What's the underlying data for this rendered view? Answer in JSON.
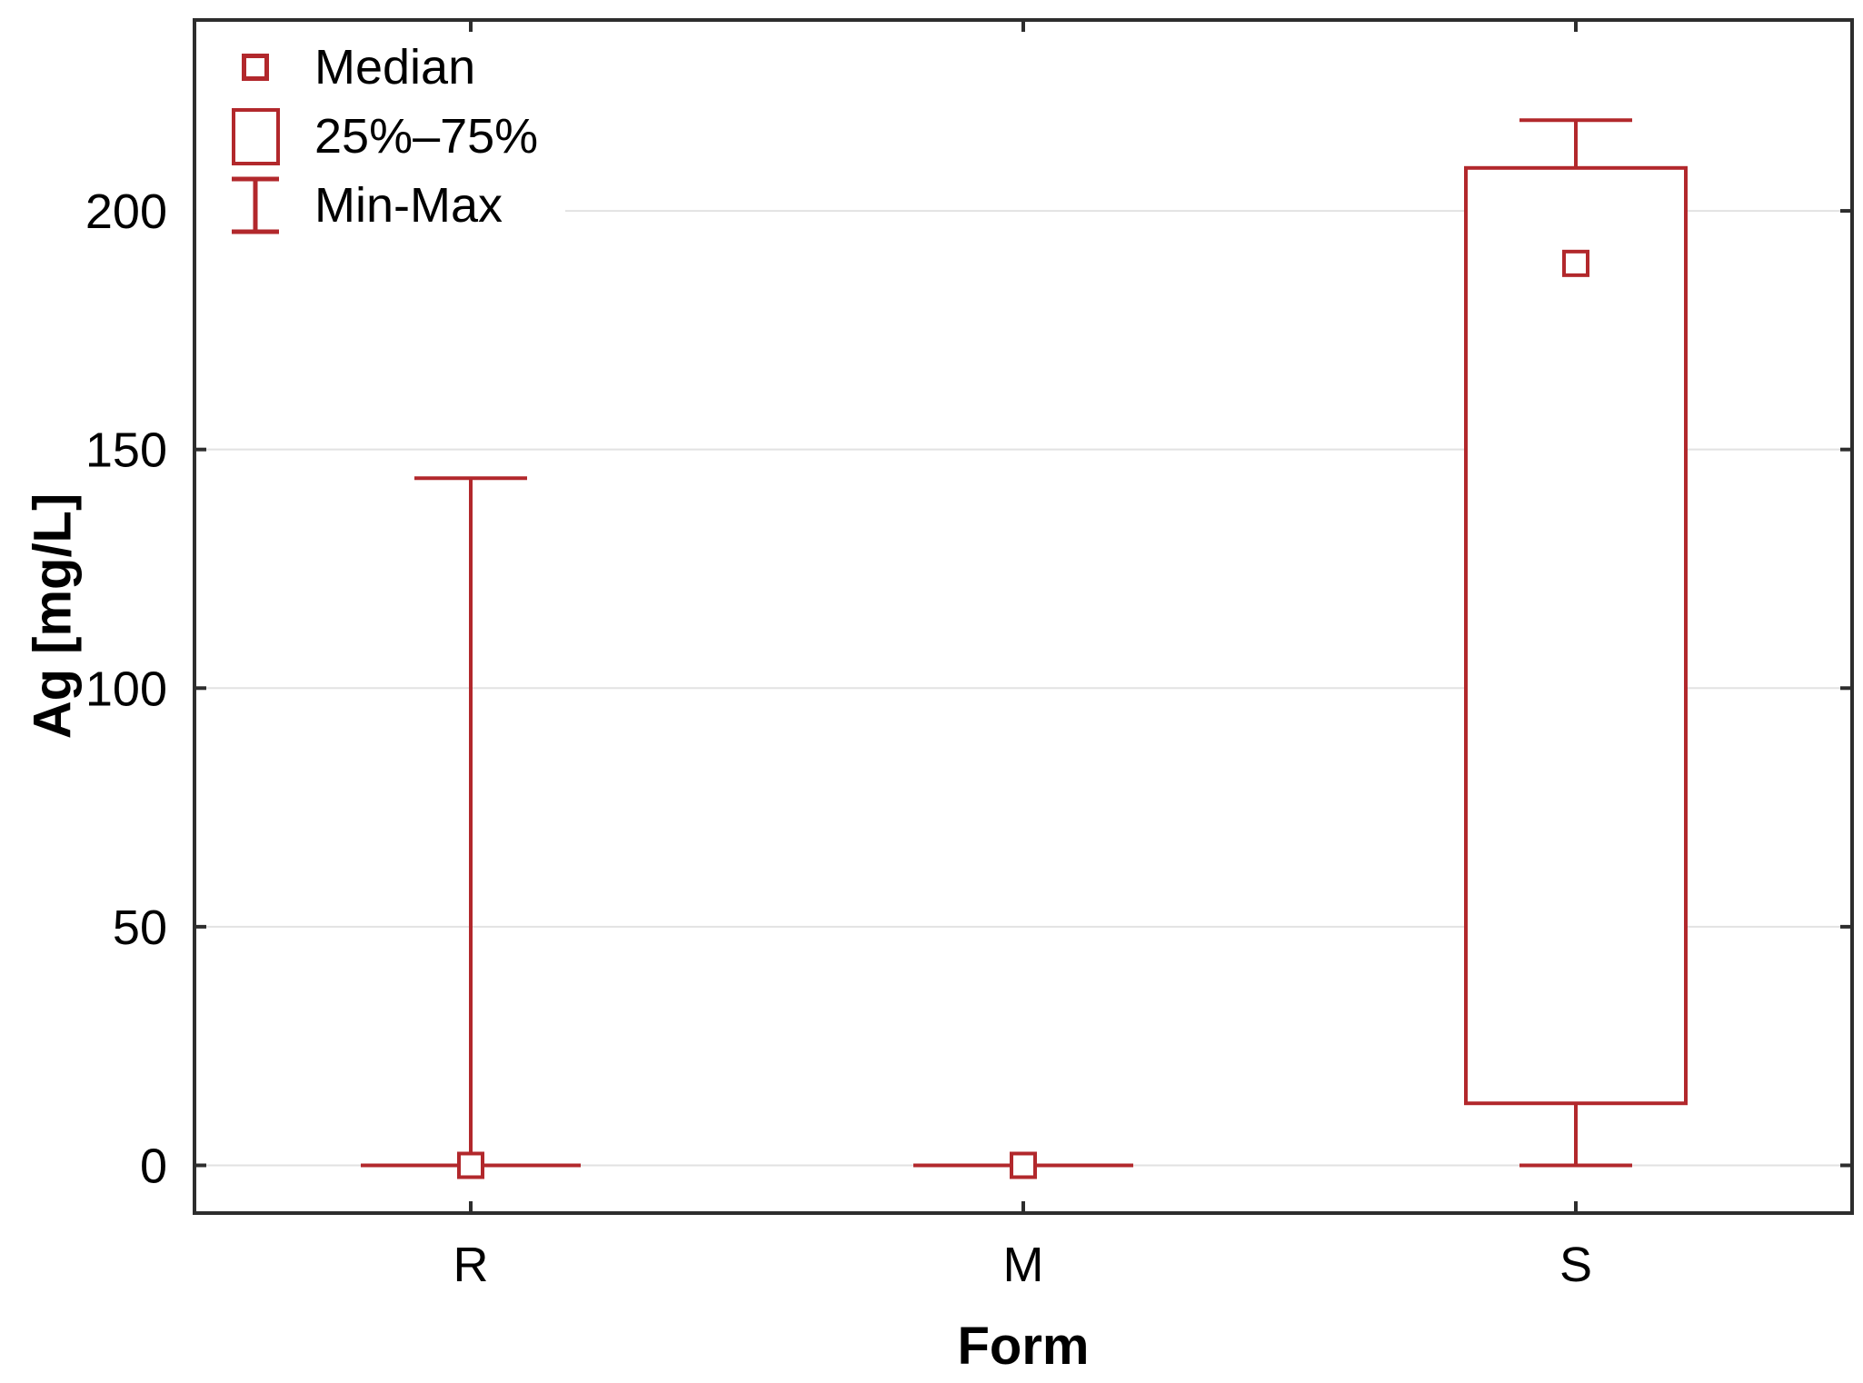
{
  "chart_data": {
    "type": "box",
    "title": "",
    "xlabel": "Form",
    "ylabel": "Ag [mg/L]",
    "categories": [
      "R",
      "M",
      "S"
    ],
    "y_ticks": [
      0,
      50,
      100,
      150,
      200
    ],
    "y_tick_labels": [
      "0",
      "50",
      "100",
      "150",
      "200"
    ],
    "ylim": [
      -10,
      240
    ],
    "grid": "horizontal",
    "legend_position": "top-left-inside",
    "series": [
      {
        "category": "R",
        "min": 0,
        "q1": 0,
        "median": 0,
        "q3": 0,
        "max": 144
      },
      {
        "category": "M",
        "min": 0,
        "q1": 0,
        "median": 0,
        "q3": 0,
        "max": 0
      },
      {
        "category": "S",
        "min": 0,
        "q1": 13,
        "median": 189,
        "q3": 209,
        "max": 219
      }
    ],
    "legend": [
      {
        "label": "Median",
        "marker": "square"
      },
      {
        "label": "25%–75%",
        "marker": "box"
      },
      {
        "label": "Min-Max",
        "marker": "whisker"
      }
    ],
    "colors": {
      "series": "#b2282c",
      "grid": "#e2e2e2",
      "axis": "#2d2d2d",
      "text": "#000000",
      "background": "#ffffff"
    }
  }
}
